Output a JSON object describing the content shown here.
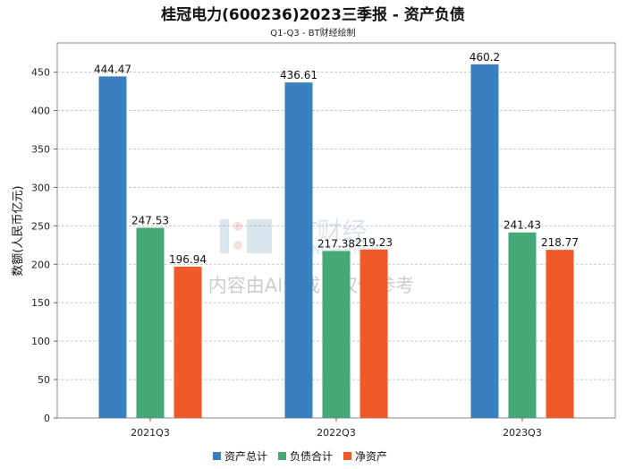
{
  "chart_data": {
    "type": "bar",
    "title": "桂冠电力(600236)2023三季报 - 资产负债",
    "subtitle": "Q1-Q3 - BT财经绘制",
    "xlabel": "",
    "ylabel": "数额(人民币亿元)",
    "ylim": [
      0,
      488
    ],
    "yticks": [
      0,
      50,
      100,
      150,
      200,
      250,
      300,
      350,
      400,
      450
    ],
    "categories": [
      "2021Q3",
      "2022Q3",
      "2023Q3"
    ],
    "series": [
      {
        "name": "资产总计",
        "color": "#3a80c0",
        "values": [
          444.47,
          436.61,
          460.2
        ],
        "labels": [
          "444.47",
          "436.61",
          "460.2"
        ]
      },
      {
        "name": "负债合计",
        "color": "#46a876",
        "values": [
          247.53,
          217.38,
          241.43
        ],
        "labels": [
          "247.53",
          "217.38",
          "241.43"
        ]
      },
      {
        "name": "净资产",
        "color": "#f05a28",
        "values": [
          196.94,
          219.23,
          218.77
        ],
        "labels": [
          "196.94",
          "219.23",
          "218.77"
        ]
      }
    ],
    "grid": true,
    "legend_position": "bottom-center"
  },
  "watermark": {
    "logo": "BT财经 BUSINESS TIMES",
    "text": "内容由AI生成，仅供参考"
  }
}
